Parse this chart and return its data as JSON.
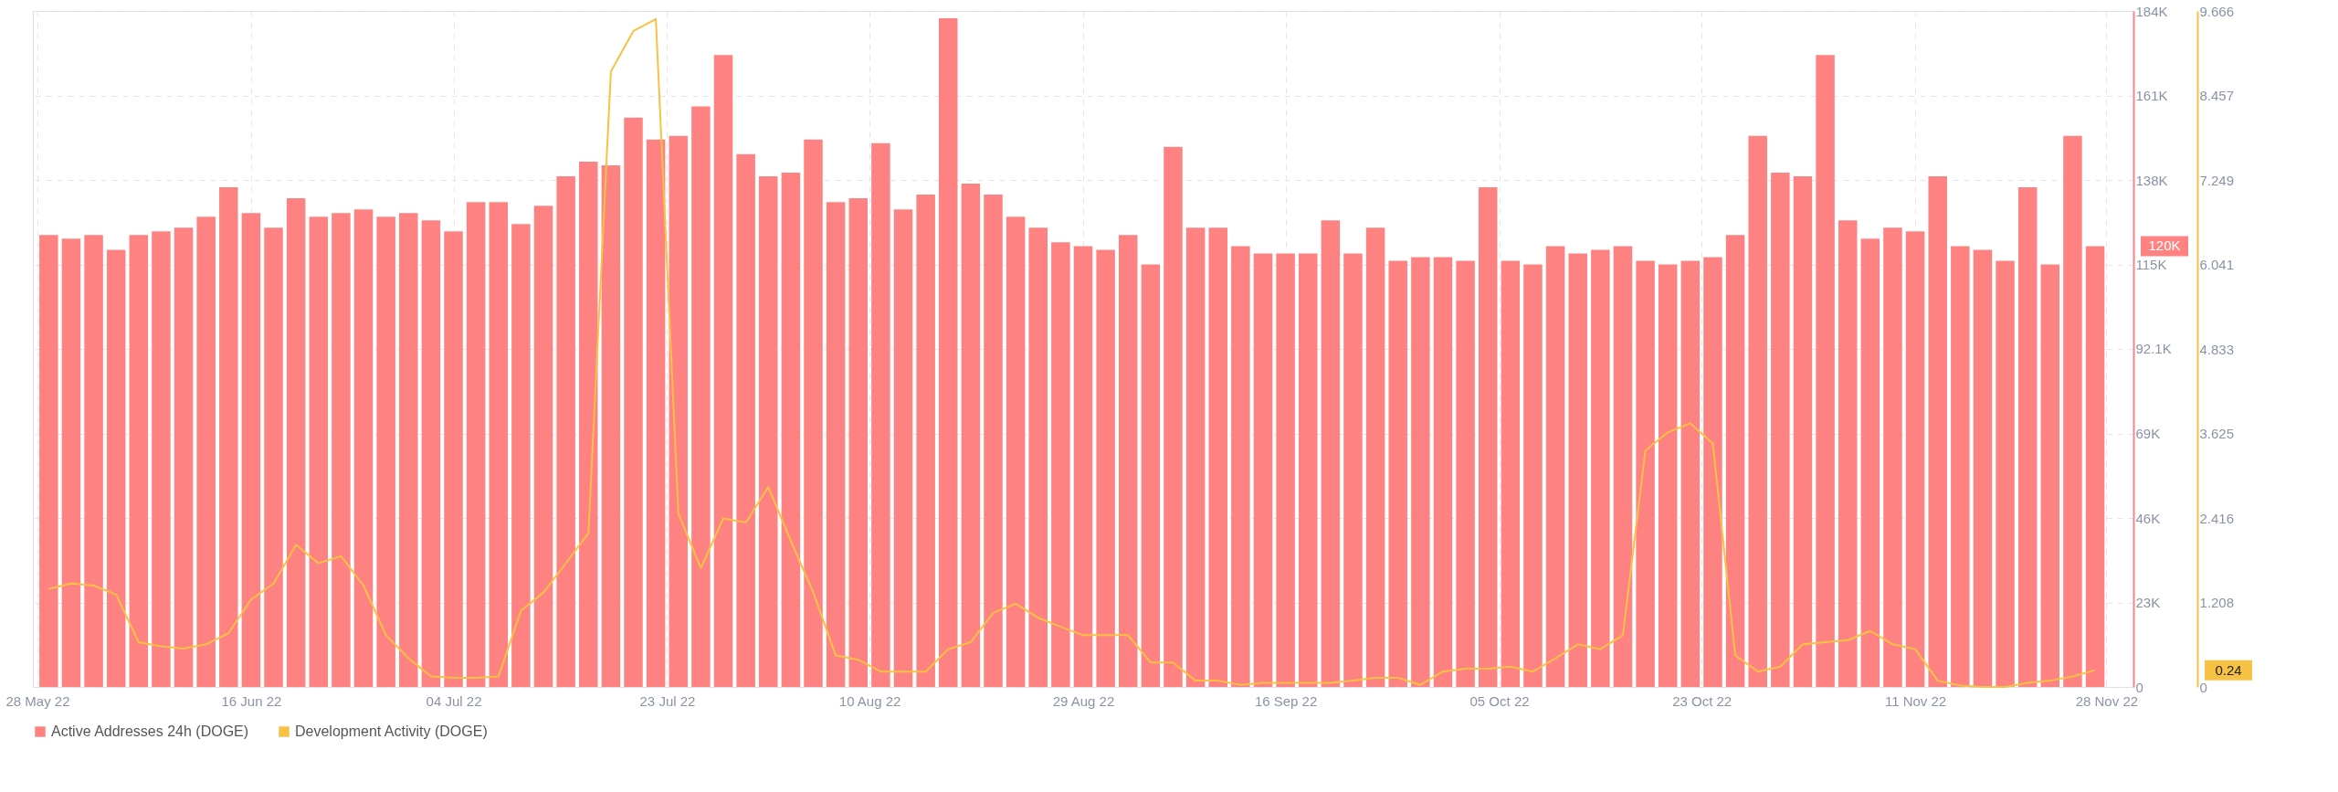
{
  "chart_data": {
    "type": "bar",
    "x": [
      "2022-05-29",
      "2022-05-31",
      "2022-06-02",
      "2022-06-04",
      "2022-06-06",
      "2022-06-08",
      "2022-06-10",
      "2022-06-12",
      "2022-06-14",
      "2022-06-16",
      "2022-06-18",
      "2022-06-20",
      "2022-06-22",
      "2022-06-24",
      "2022-06-26",
      "2022-06-28",
      "2022-06-30",
      "2022-07-02",
      "2022-07-04",
      "2022-07-06",
      "2022-07-08",
      "2022-07-10",
      "2022-07-12",
      "2022-07-14",
      "2022-07-16",
      "2022-07-18",
      "2022-07-20",
      "2022-07-22",
      "2022-07-24",
      "2022-07-26",
      "2022-07-28",
      "2022-07-30",
      "2022-08-01",
      "2022-08-03",
      "2022-08-05",
      "2022-08-07",
      "2022-08-09",
      "2022-08-11",
      "2022-08-13",
      "2022-08-15",
      "2022-08-17",
      "2022-08-19",
      "2022-08-21",
      "2022-08-23",
      "2022-08-25",
      "2022-08-27",
      "2022-08-29",
      "2022-08-31",
      "2022-09-02",
      "2022-09-04",
      "2022-09-06",
      "2022-09-08",
      "2022-09-10",
      "2022-09-12",
      "2022-09-14",
      "2022-09-16",
      "2022-09-18",
      "2022-09-20",
      "2022-09-22",
      "2022-09-24",
      "2022-09-26",
      "2022-09-28",
      "2022-09-30",
      "2022-10-02",
      "2022-10-04",
      "2022-10-06",
      "2022-10-08",
      "2022-10-10",
      "2022-10-12",
      "2022-10-14",
      "2022-10-16",
      "2022-10-18",
      "2022-10-20",
      "2022-10-22",
      "2022-10-24",
      "2022-10-26",
      "2022-10-28",
      "2022-10-30",
      "2022-11-01",
      "2022-11-03",
      "2022-11-05",
      "2022-11-07",
      "2022-11-09",
      "2022-11-11",
      "2022-11-13",
      "2022-11-15",
      "2022-11-17",
      "2022-11-19",
      "2022-11-21",
      "2022-11-23",
      "2022-11-25",
      "2022-11-27"
    ],
    "series": [
      {
        "name": "Active Addresses 24h (DOGE)",
        "color": "#ff8282",
        "values": [
          123000,
          122000,
          123000,
          119000,
          123000,
          124000,
          125000,
          128000,
          136000,
          129000,
          125000,
          133000,
          128000,
          129000,
          130000,
          128000,
          129000,
          127000,
          124000,
          132000,
          132000,
          126000,
          131000,
          139000,
          143000,
          142000,
          155000,
          149000,
          150000,
          158000,
          172000,
          145000,
          139000,
          140000,
          149000,
          132000,
          133000,
          148000,
          130000,
          134000,
          182000,
          137000,
          134000,
          128000,
          125000,
          121000,
          120000,
          119000,
          123000,
          115000,
          147000,
          125000,
          125000,
          120000,
          118000,
          118000,
          118000,
          127000,
          118000,
          125000,
          116000,
          117000,
          117000,
          116000,
          136000,
          116000,
          115000,
          120000,
          118000,
          119000,
          120000,
          116000,
          115000,
          116000,
          117000,
          123000,
          150000,
          140000,
          139000,
          172000,
          127000,
          122000,
          125000,
          124000,
          139000,
          120000,
          119000,
          116000,
          136000,
          115000,
          150000,
          120000
        ]
      },
      {
        "name": "Development Activity (DOGE)",
        "type": "line",
        "axis": "y2",
        "color": "#f7c244",
        "values": [
          1.4,
          1.48,
          1.45,
          1.32,
          0.64,
          0.58,
          0.55,
          0.61,
          0.77,
          1.25,
          1.48,
          2.03,
          1.77,
          1.87,
          1.45,
          0.74,
          0.41,
          0.15,
          0.13,
          0.13,
          0.15,
          1.09,
          1.35,
          1.77,
          2.2,
          8.8,
          9.38,
          9.55,
          2.48,
          1.7,
          2.41,
          2.35,
          2.86,
          2.09,
          1.35,
          0.45,
          0.39,
          0.22,
          0.22,
          0.22,
          0.54,
          0.64,
          1.06,
          1.19,
          0.99,
          0.86,
          0.74,
          0.74,
          0.74,
          0.35,
          0.35,
          0.09,
          0.09,
          0.03,
          0.06,
          0.06,
          0.06,
          0.06,
          0.09,
          0.13,
          0.13,
          0.03,
          0.22,
          0.26,
          0.26,
          0.29,
          0.22,
          0.41,
          0.61,
          0.54,
          0.74,
          3.38,
          3.64,
          3.77,
          3.48,
          0.45,
          0.22,
          0.29,
          0.61,
          0.64,
          0.67,
          0.8,
          0.61,
          0.54,
          0.09,
          0.02,
          0,
          0,
          0.06,
          0.09,
          0.15,
          0.24
        ]
      }
    ],
    "xlim": [
      "2022-05-28",
      "2022-11-30"
    ],
    "xticks": [
      {
        "value": "2022-05-28",
        "label": "28 May 22"
      },
      {
        "value": "2022-06-16",
        "label": "16 Jun 22"
      },
      {
        "value": "2022-07-04",
        "label": "04 Jul 22"
      },
      {
        "value": "2022-07-23",
        "label": "23 Jul 22"
      },
      {
        "value": "2022-08-10",
        "label": "10 Aug 22"
      },
      {
        "value": "2022-08-29",
        "label": "29 Aug 22"
      },
      {
        "value": "2022-09-16",
        "label": "16 Sep 22"
      },
      {
        "value": "2022-10-05",
        "label": "05 Oct 22"
      },
      {
        "value": "2022-10-23",
        "label": "23 Oct 22"
      },
      {
        "value": "2022-11-11",
        "label": "11 Nov 22"
      },
      {
        "value": "2022-11-28",
        "label": "28 Nov 22"
      }
    ],
    "ylim": [
      0,
      184000
    ],
    "yticks": [
      0,
      {
        "value": 23000,
        "label": "23K"
      },
      {
        "value": 46000,
        "label": "46K"
      },
      {
        "value": 69000,
        "label": "69K"
      },
      {
        "value": 92100,
        "label": "92.1K"
      },
      {
        "value": 115000,
        "label": "115K"
      },
      {
        "value": 138000,
        "label": "138K"
      },
      {
        "value": 161000,
        "label": "161K"
      },
      {
        "value": 184000,
        "label": "184K"
      }
    ],
    "y2lim": [
      0,
      9.666
    ],
    "y2ticks": [
      0,
      1.208,
      2.416,
      3.625,
      4.833,
      6.041,
      7.249,
      8.457,
      9.666
    ],
    "annotations": [
      "120K",
      "0.24"
    ],
    "grid": true,
    "legend": "bottom"
  }
}
